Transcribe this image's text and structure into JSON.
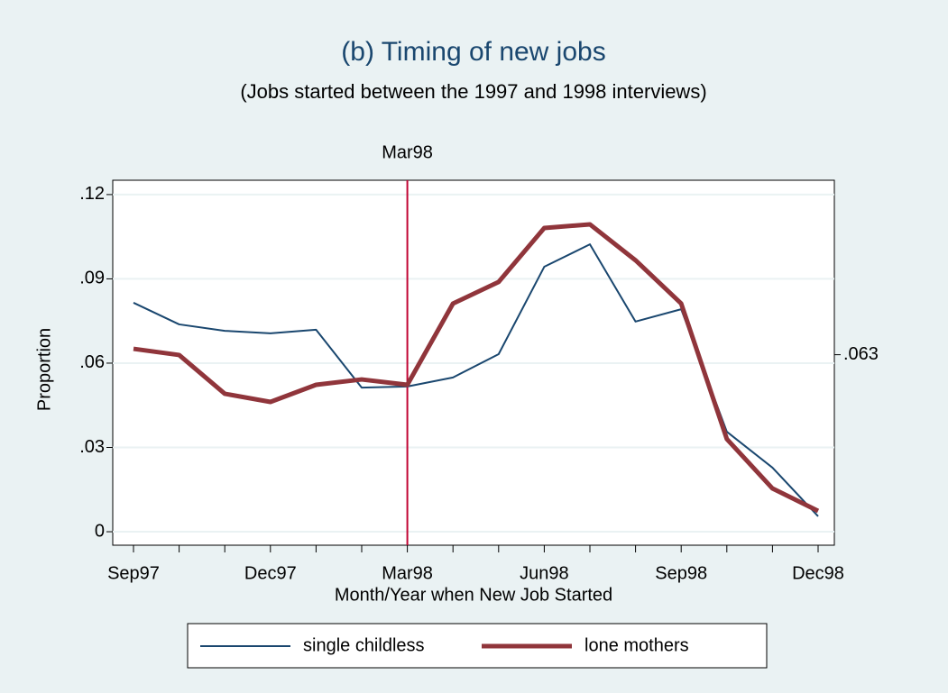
{
  "chart_data": {
    "type": "line",
    "title": "(b) Timing of new jobs",
    "subtitle": "(Jobs started between the 1997 and 1998 interviews)",
    "x_label": "Month/Year when New Job Started",
    "y_label": "Proportion",
    "categories": [
      "Sep97",
      null,
      null,
      "Dec97",
      null,
      null,
      "Mar98",
      null,
      null,
      "Jun98",
      null,
      null,
      "Sep98",
      null,
      null,
      "Dec98"
    ],
    "series": [
      {
        "name": "single childless",
        "color": "#1a476f",
        "width": 2,
        "values": [
          0.0815,
          0.0738,
          0.0715,
          0.0706,
          0.0719,
          0.0513,
          0.0517,
          0.0549,
          0.0632,
          0.0943,
          0.1023,
          0.0748,
          0.0792,
          0.0356,
          0.0228,
          0.0055
        ]
      },
      {
        "name": "lone mothers",
        "color": "#90353b",
        "width": 5,
        "values": [
          0.0651,
          0.0629,
          0.0491,
          0.0462,
          0.0523,
          0.0542,
          0.0523,
          0.0812,
          0.0889,
          0.1081,
          0.1094,
          0.0966,
          0.0812,
          0.033,
          0.0154,
          0.0074
        ]
      }
    ],
    "ylim": [
      -0.0048,
      0.1251
    ],
    "yticks": [
      0,
      {
        "value": 0.03,
        "label": ".03"
      },
      {
        "value": 0.06,
        "label": ".06"
      },
      {
        "value": 0.09,
        "label": ".09"
      },
      {
        "value": 0.12,
        "label": ".12"
      }
    ],
    "y2lim": [
      -0.0048,
      0.1251
    ],
    "y2ticks": [
      {
        "value": 0.063,
        "label": ".063"
      }
    ],
    "grid": true,
    "annotations": [
      {
        "x": "Mar98",
        "label": "Mar98",
        "color": "#c10534"
      }
    ],
    "legend": "bottom"
  }
}
